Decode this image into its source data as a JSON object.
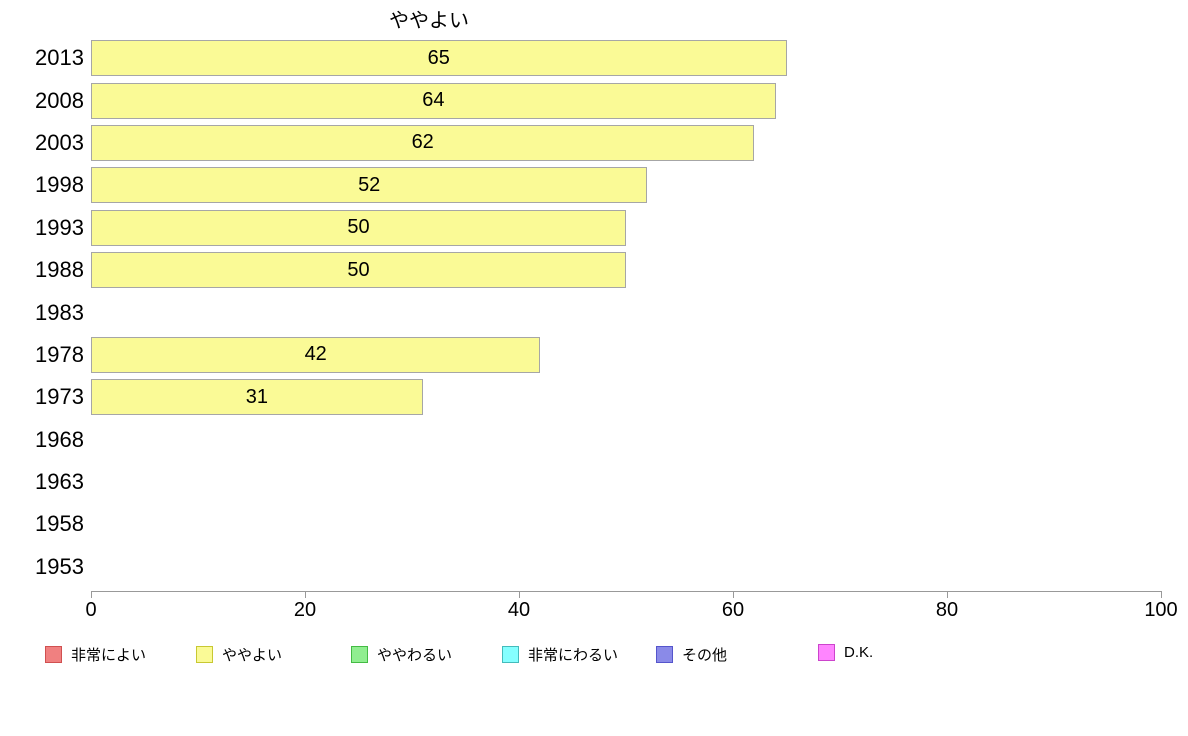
{
  "chart_data": {
    "type": "bar",
    "orientation": "horizontal",
    "title": "ややよい",
    "categories": [
      "2013",
      "2008",
      "2003",
      "1998",
      "1993",
      "1988",
      "1983",
      "1978",
      "1973",
      "1968",
      "1963",
      "1958",
      "1953"
    ],
    "values": [
      65,
      64,
      62,
      52,
      50,
      50,
      null,
      42,
      31,
      null,
      null,
      null,
      null
    ],
    "xlabel": "",
    "ylabel": "",
    "xlim": [
      0,
      100
    ],
    "x_ticks": [
      0,
      20,
      40,
      60,
      80,
      100
    ],
    "grid": false,
    "value_labels_inside_bars": true,
    "bar_fill": "#FAFA96",
    "bar_border": "#A6A6A6",
    "axis_color": "#999999",
    "legend_position": "bottom",
    "legend": [
      {
        "label": "非常によい",
        "fill": "#F08080",
        "border": "#D05050"
      },
      {
        "label": "ややよい",
        "fill": "#FAFA96",
        "border": "#C8C832"
      },
      {
        "label": "ややわるい",
        "fill": "#90EE90",
        "border": "#44BB44"
      },
      {
        "label": "非常にわるい",
        "fill": "#85FFFF",
        "border": "#44BBBB"
      },
      {
        "label": "その他",
        "fill": "#8A8AE8",
        "border": "#5555CC"
      },
      {
        "label": "D.K.",
        "fill": "#FF85FF",
        "border": "#CC44CC"
      }
    ]
  }
}
